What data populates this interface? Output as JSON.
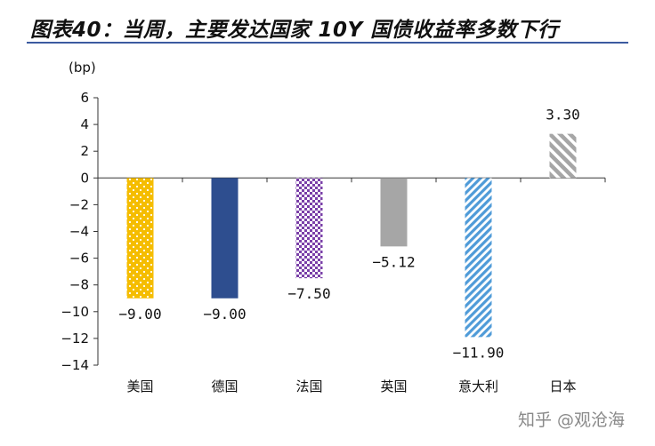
{
  "header": {
    "title": "图表40：当周，主要发达国家 10Y 国债收益率多数下行"
  },
  "watermark": "知乎 @观沧海",
  "chart_data": {
    "type": "bar",
    "title": "图表40：当周，主要发达国家 10Y 国债收益率多数下行",
    "unit": "(bp)",
    "categories": [
      "美国",
      "德国",
      "法国",
      "英国",
      "意大利",
      "日本"
    ],
    "values": [
      -9.0,
      -9.0,
      -7.5,
      -5.12,
      -11.9,
      3.3
    ],
    "value_labels": [
      "-9.00",
      "-9.00",
      "-7.50",
      "-5.12",
      "-11.90",
      "3.30"
    ],
    "ylim": [
      -14,
      6
    ],
    "yticks": [
      6,
      4,
      2,
      0,
      -2,
      -4,
      -6,
      -8,
      -10,
      -12,
      -14
    ],
    "grid": false,
    "legend": "none",
    "bar_styles": [
      {
        "pattern": "dots",
        "color": "#f5bd00",
        "fg": "#ffffff"
      },
      {
        "pattern": "solid",
        "color": "#2e4e8f",
        "fg": "#2e4e8f"
      },
      {
        "pattern": "checker",
        "color": "#7a3fa8",
        "fg": "#ffffff"
      },
      {
        "pattern": "solid",
        "color": "#a6a6a6",
        "fg": "#a6a6a6"
      },
      {
        "pattern": "diag-down",
        "color": "#4f9bd8",
        "fg": "#ffffff"
      },
      {
        "pattern": "diag-up",
        "color": "#a6a6a6",
        "fg": "#ffffff"
      }
    ]
  }
}
